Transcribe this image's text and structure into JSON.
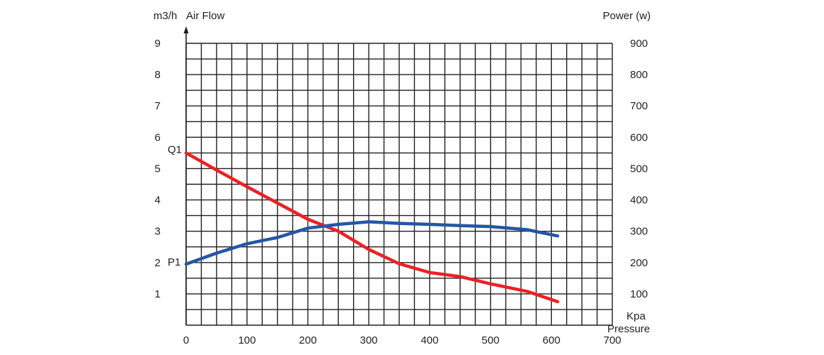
{
  "chart_data": {
    "type": "line",
    "xlabel": "Pressure",
    "x_unit": "Kpa",
    "ylabel_left": "Air Flow",
    "y_unit_left": "m3/h",
    "ylabel_right": "Power (w)",
    "xlim": [
      0,
      700
    ],
    "ylim_left": [
      0,
      9
    ],
    "ylim_right": [
      0,
      900
    ],
    "x_ticks": [
      0,
      100,
      200,
      300,
      400,
      500,
      600,
      700
    ],
    "y_ticks_left": [
      1,
      2,
      3,
      4,
      5,
      6,
      7,
      8,
      9
    ],
    "y_ticks_right": [
      100,
      200,
      300,
      400,
      500,
      600,
      700,
      800,
      900
    ],
    "grid": true,
    "series": [
      {
        "name": "Q1",
        "axis": "left",
        "color": "#ed2024",
        "x": [
          0,
          50,
          100,
          150,
          200,
          250,
          300,
          350,
          400,
          450,
          500,
          560,
          610
        ],
        "values": [
          5.5,
          4.95,
          4.42,
          3.9,
          3.38,
          3.0,
          2.42,
          1.96,
          1.68,
          1.55,
          1.32,
          1.08,
          0.75
        ]
      },
      {
        "name": "P1",
        "axis": "right",
        "color": "#2356a6",
        "x": [
          0,
          50,
          100,
          150,
          200,
          250,
          300,
          350,
          400,
          450,
          500,
          560,
          610
        ],
        "values": [
          195,
          230,
          260,
          280,
          310,
          322,
          330,
          325,
          322,
          318,
          315,
          305,
          285
        ]
      }
    ]
  }
}
